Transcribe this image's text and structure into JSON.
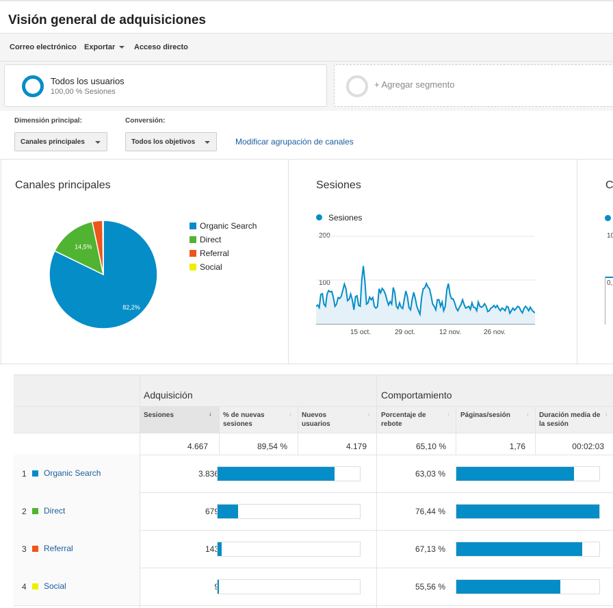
{
  "page": {
    "title": "Visión general de adquisiciones"
  },
  "toolbar": {
    "email": "Correo electrónico",
    "export": "Exportar",
    "shortcut": "Acceso directo"
  },
  "segments": {
    "active_name": "Todos los usuarios",
    "active_sub": "100,00 % Sesiones",
    "add": "+ Agregar segmento"
  },
  "controls": {
    "primary_dim_label": "Dimensión principal:",
    "primary_dim_value": "Canales principales",
    "conversion_label": "Conversión:",
    "conversion_value": "Todos los objetivos",
    "modify_link": "Modificar agrupación de canales"
  },
  "colors": {
    "accent": "#058dc7",
    "organic": "#058dc7",
    "direct": "#50b432",
    "referral": "#ed561b",
    "social": "#edef00",
    "link": "#1a5c9e"
  },
  "panels": {
    "channels_title": "Canales principales",
    "sessions_title": "Sesiones",
    "third_title_partial": "C",
    "third_ytick_1": "10",
    "third_ytick_2": "0,"
  },
  "chart_data": [
    {
      "type": "pie",
      "title": "Canales principales",
      "categories": [
        "Organic Search",
        "Direct",
        "Referral",
        "Social"
      ],
      "values": [
        82.2,
        14.5,
        3.1,
        0.2
      ],
      "data_labels": [
        "82,2%",
        "14,5%",
        "",
        ""
      ],
      "legend": "right"
    },
    {
      "type": "area",
      "title": "Sesiones",
      "series": [
        {
          "name": "Sesiones",
          "values": [
            40,
            43,
            37,
            67,
            69,
            45,
            40,
            68,
            76,
            73,
            74,
            60,
            40,
            45,
            60,
            58,
            63,
            77,
            91,
            80,
            53,
            56,
            68,
            55,
            32,
            62,
            64,
            42,
            40,
            100,
            132,
            96,
            45,
            48,
            61,
            55,
            60,
            40,
            36,
            40,
            80,
            71,
            81,
            76,
            68,
            54,
            43,
            51,
            45,
            83,
            71,
            40,
            35,
            48,
            38,
            35,
            56,
            75,
            62,
            37,
            32,
            55,
            72,
            58,
            40,
            30,
            22,
            60,
            80,
            82,
            92,
            84,
            80,
            64,
            45,
            40,
            32,
            55,
            55,
            40,
            50,
            30,
            40,
            78,
            92,
            68,
            57,
            57,
            48,
            36,
            30,
            38,
            44,
            55,
            44,
            36,
            38,
            40,
            33,
            48,
            38,
            37,
            30,
            50,
            40,
            38,
            40,
            46,
            40,
            28,
            30,
            36,
            38,
            42,
            37,
            42,
            35,
            30,
            36,
            34,
            30,
            40,
            38,
            24,
            30,
            36,
            31,
            35,
            40,
            38,
            30,
            25,
            35,
            40,
            36,
            30,
            38,
            32,
            28,
            25
          ]
        }
      ],
      "x_ticks": [
        "15 oct.",
        "29 oct.",
        "12 nov.",
        "26 nov."
      ],
      "y_ticks": [
        "200",
        "100"
      ],
      "ylim": [
        0,
        200
      ],
      "grid": true,
      "legend": "top-left"
    }
  ],
  "table": {
    "group_acquisition": "Adquisición",
    "group_behavior": "Comportamiento",
    "columns": [
      {
        "label": "Sesiones"
      },
      {
        "label": "% de nuevas sesiones"
      },
      {
        "label": "Nuevos usuarios"
      },
      {
        "label": "Porcentaje de rebote"
      },
      {
        "label": "Páginas/sesión"
      },
      {
        "label": "Duración media de la sesión"
      }
    ],
    "totals": [
      "4.667",
      "89,54 %",
      "4.179",
      "65,10 %",
      "1,76",
      "00:02:03"
    ],
    "rows": [
      {
        "index": "1",
        "channel": "Organic Search",
        "color": "#058dc7",
        "sessions": "3.836",
        "sessions_share": 0.822,
        "bounce": "63,03 %",
        "bounce_share": 0.825
      },
      {
        "index": "2",
        "channel": "Direct",
        "color": "#50b432",
        "sessions": "679",
        "sessions_share": 0.145,
        "bounce": "76,44 %",
        "bounce_share": 1.0
      },
      {
        "index": "3",
        "channel": "Referral",
        "color": "#ed561b",
        "sessions": "143",
        "sessions_share": 0.031,
        "bounce": "67,13 %",
        "bounce_share": 0.878
      },
      {
        "index": "4",
        "channel": "Social",
        "color": "#edef00",
        "sessions": "9",
        "sessions_share": 0.002,
        "bounce": "55,56 %",
        "bounce_share": 0.727
      }
    ]
  }
}
